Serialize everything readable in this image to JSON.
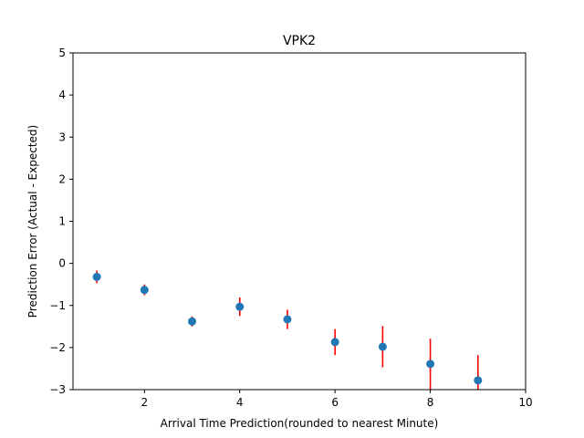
{
  "chart_data": {
    "type": "scatter",
    "title": "VPK2",
    "xlabel": "Arrival Time Prediction(rounded to nearest Minute)",
    "ylabel": "Prediction Error (Actual - Expected)",
    "xlim": [
      0.5,
      10
    ],
    "ylim": [
      -3,
      5
    ],
    "xticks": [
      2,
      4,
      6,
      8,
      10
    ],
    "yticks": [
      -3,
      -2,
      -1,
      0,
      1,
      2,
      3,
      4,
      5
    ],
    "grid": false,
    "series": [
      {
        "x": [
          1,
          2,
          3,
          4,
          5,
          6,
          7,
          8,
          9
        ],
        "y": [
          -0.32,
          -0.63,
          -1.38,
          -1.03,
          -1.33,
          -1.87,
          -1.98,
          -2.39,
          -2.78
        ],
        "error": [
          0.15,
          0.13,
          0.12,
          0.22,
          0.23,
          0.31,
          0.49,
          0.6,
          0.6
        ]
      }
    ],
    "colors": {
      "marker": "#1f77b4",
      "errorbar": "#ff0000",
      "axis": "#000000"
    }
  }
}
